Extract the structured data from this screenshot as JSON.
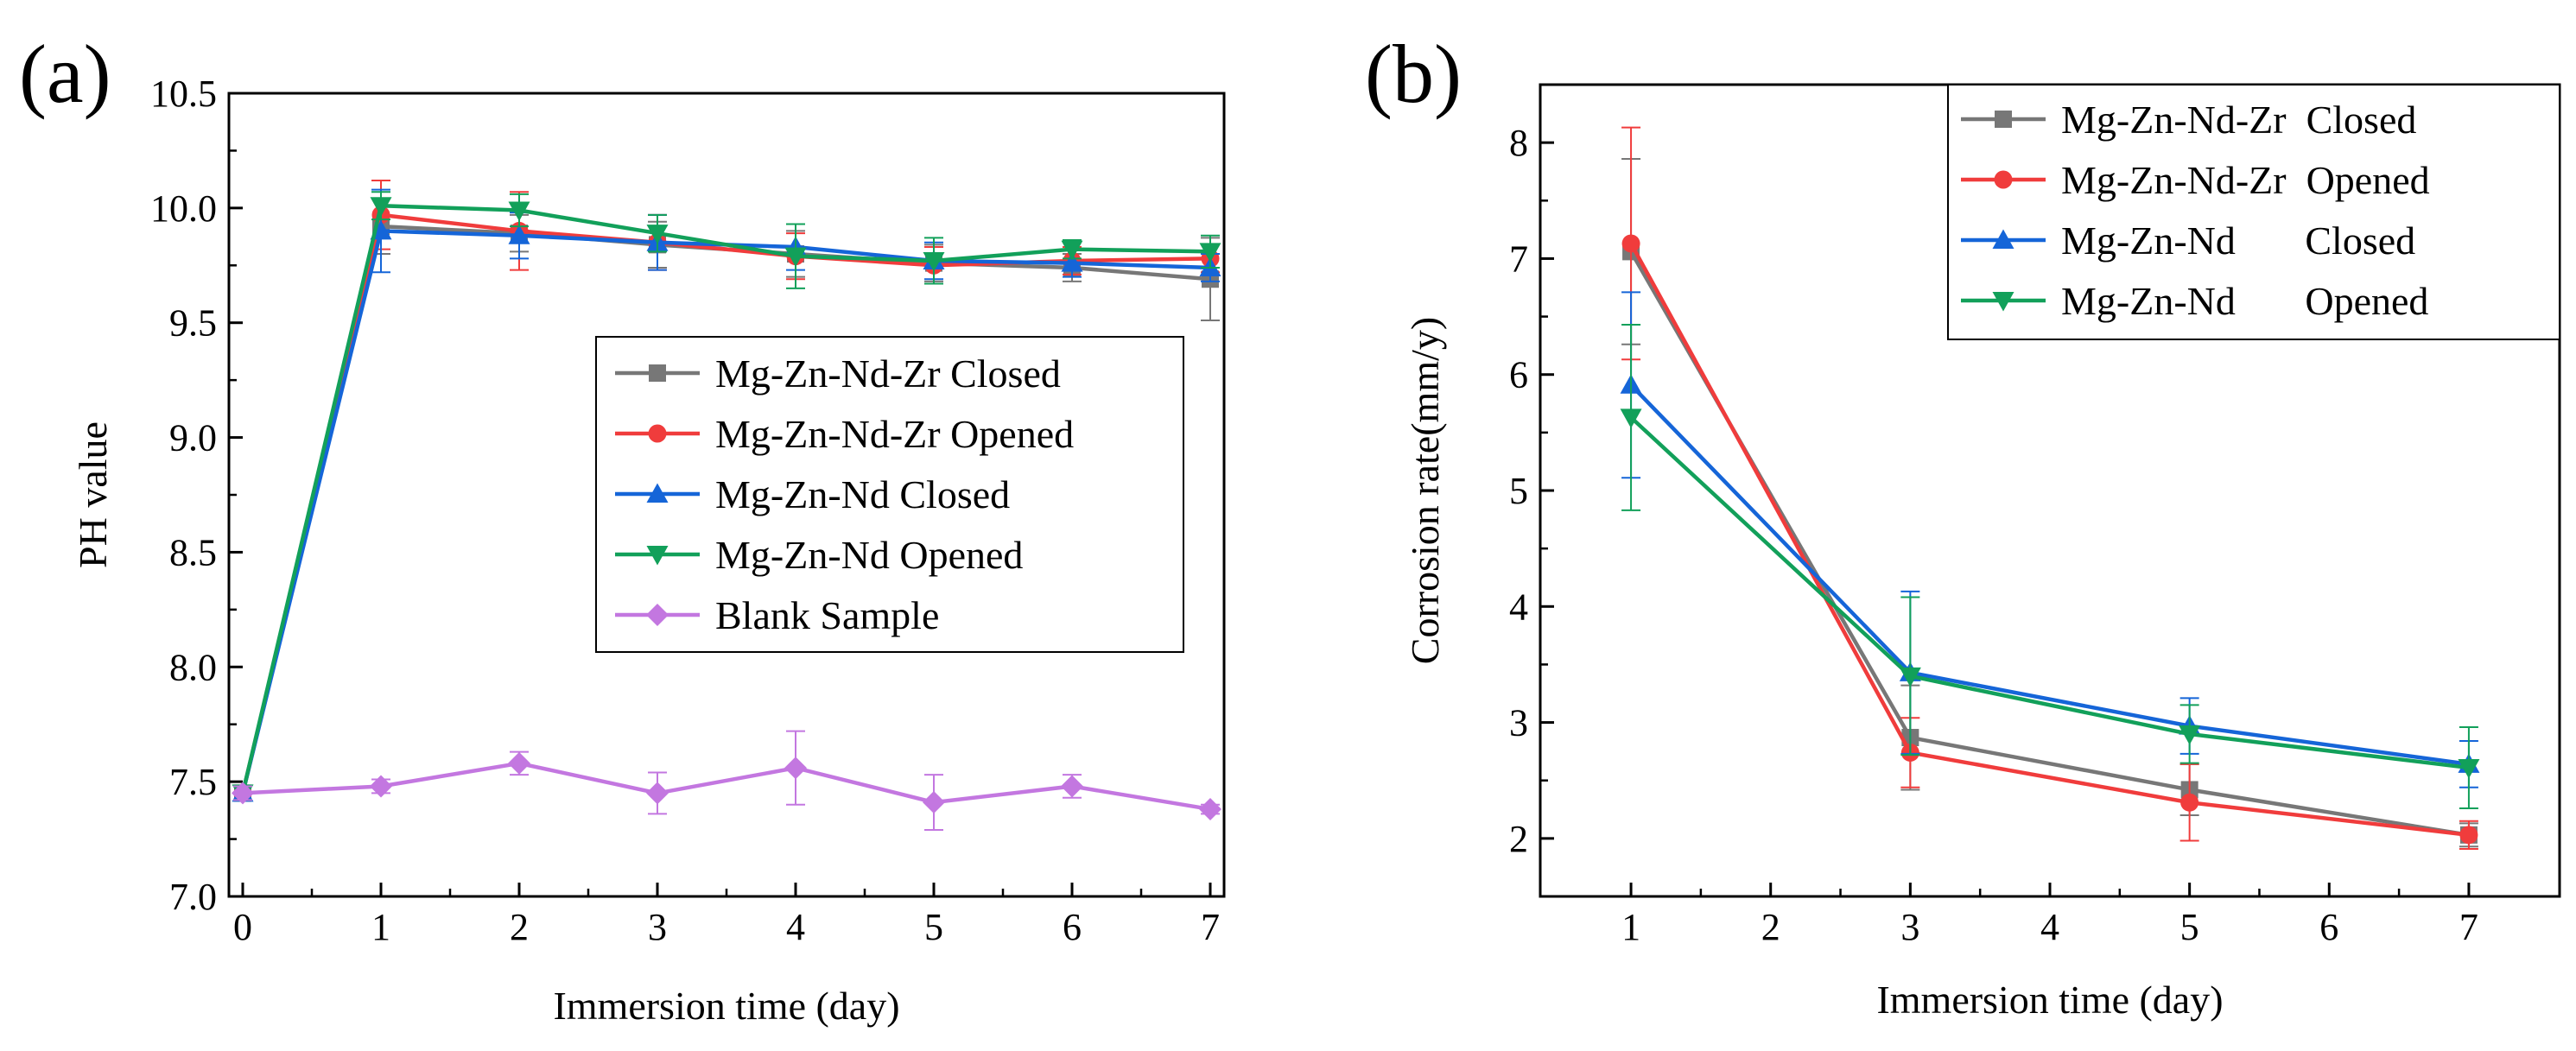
{
  "chart_data": [
    {
      "type": "line",
      "panel_label": "(a)",
      "xlabel": "Immersion time (day)",
      "ylabel": "PH value",
      "xlim": [
        -0.1,
        7.1
      ],
      "ylim": [
        7.0,
        10.5
      ],
      "x_ticks": [
        0,
        1,
        2,
        3,
        4,
        5,
        6,
        7
      ],
      "x_tick_labels": [
        "0",
        "1",
        "2",
        "3",
        "4",
        "5",
        "6",
        "7"
      ],
      "y_ticks": [
        7.0,
        7.5,
        8.0,
        8.5,
        9.0,
        9.5,
        10.0,
        10.5
      ],
      "y_tick_labels": [
        "7.0",
        "7.5",
        "8.0",
        "8.5",
        "9.0",
        "9.5",
        "10.0",
        "10.5"
      ],
      "legend_position": "center-right",
      "x": [
        0,
        1,
        2,
        3,
        4,
        5,
        6,
        7
      ],
      "series": [
        {
          "name": "Mg-Zn-Nd-Zr Closed",
          "color": "#777777",
          "marker": "square",
          "values": [
            7.45,
            9.92,
            9.89,
            9.84,
            9.8,
            9.76,
            9.74,
            9.69
          ],
          "errors": [
            0.03,
            0.12,
            0.08,
            0.1,
            0.1,
            0.08,
            0.06,
            0.18
          ]
        },
        {
          "name": "Mg-Zn-Nd-Zr Opened",
          "color": "#f03c3c",
          "marker": "circle",
          "values": [
            7.45,
            9.97,
            9.9,
            9.85,
            9.79,
            9.75,
            9.77,
            9.78
          ],
          "errors": [
            0.03,
            0.15,
            0.17,
            0.12,
            0.1,
            0.08,
            0.06,
            0.06
          ]
        },
        {
          "name": "Mg-Zn-Nd Closed",
          "color": "#1565d8",
          "marker": "triangle-up",
          "values": [
            7.45,
            9.9,
            9.88,
            9.85,
            9.83,
            9.77,
            9.76,
            9.74
          ],
          "errors": [
            0.03,
            0.18,
            0.1,
            0.12,
            0.1,
            0.08,
            0.06,
            0.06
          ]
        },
        {
          "name": "Mg-Zn-Nd Opened",
          "color": "#12a05a",
          "marker": "triangle-down",
          "values": [
            7.45,
            10.01,
            9.99,
            9.89,
            9.79,
            9.77,
            9.82,
            9.81
          ],
          "errors": [
            0.03,
            0.06,
            0.07,
            0.08,
            0.14,
            0.1,
            0.04,
            0.07
          ]
        },
        {
          "name": "Blank Sample",
          "color": "#c377e0",
          "marker": "diamond",
          "values": [
            7.45,
            7.48,
            7.58,
            7.45,
            7.56,
            7.41,
            7.48,
            7.38
          ],
          "errors": [
            0.03,
            0.03,
            0.05,
            0.09,
            0.16,
            0.12,
            0.05,
            0.02
          ]
        }
      ]
    },
    {
      "type": "line",
      "panel_label": "(b)",
      "xlabel": "Immersion time (day)",
      "ylabel": "Corrosion rate(mm/y)",
      "xlim": [
        0.35,
        7.65
      ],
      "ylim": [
        1.5,
        8.5
      ],
      "x_ticks": [
        1,
        2,
        3,
        4,
        5,
        6,
        7
      ],
      "x_tick_labels": [
        "1",
        "2",
        "3",
        "4",
        "5",
        "6",
        "7"
      ],
      "y_ticks": [
        2,
        3,
        4,
        5,
        6,
        7,
        8
      ],
      "y_tick_labels": [
        "2",
        "3",
        "4",
        "5",
        "6",
        "7",
        "8"
      ],
      "legend_position": "top-right",
      "x": [
        1,
        3,
        5,
        7
      ],
      "series": [
        {
          "name": "Mg-Zn-Nd-Zr  Closed",
          "color": "#777777",
          "marker": "square",
          "values": [
            7.06,
            2.87,
            2.42,
            2.03
          ],
          "errors": [
            0.8,
            0.45,
            0.22,
            0.1
          ]
        },
        {
          "name": "Mg-Zn-Nd-Zr  Opened",
          "color": "#f03c3c",
          "marker": "circle",
          "values": [
            7.13,
            2.74,
            2.31,
            2.03
          ],
          "errors": [
            1.0,
            0.3,
            0.33,
            0.12
          ]
        },
        {
          "name": "Mg-Zn-Nd       Closed",
          "color": "#1565d8",
          "marker": "triangle-up",
          "values": [
            5.91,
            3.43,
            2.97,
            2.64
          ],
          "errors": [
            0.8,
            0.7,
            0.24,
            0.2
          ]
        },
        {
          "name": "Mg-Zn-Nd       Opened",
          "color": "#12a05a",
          "marker": "triangle-down",
          "values": [
            5.63,
            3.4,
            2.9,
            2.61
          ],
          "errors": [
            0.8,
            0.68,
            0.25,
            0.35
          ]
        }
      ]
    }
  ]
}
